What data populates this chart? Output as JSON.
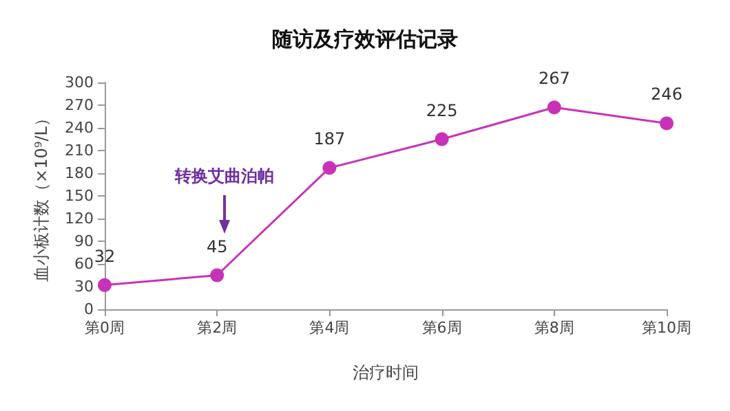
{
  "chart_data": {
    "type": "line",
    "title": "随访及疗效评估记录",
    "xlabel": "治疗时间",
    "ylabel": "血小板计数（×10⁹/L）",
    "categories": [
      "第0周",
      "第2周",
      "第4周",
      "第6周",
      "第8周",
      "第10周"
    ],
    "series": [
      {
        "color": "#c832b8",
        "values": [
          32,
          45,
          187,
          225,
          267,
          246
        ]
      }
    ],
    "ylim": [
      0,
      300
    ],
    "yticks": [
      0,
      30,
      60,
      90,
      120,
      150,
      180,
      210,
      240,
      270,
      300
    ],
    "annotations": [
      "转换艾曲泊帕"
    ],
    "data_labels": true,
    "grid": false,
    "marker": "circle",
    "line_style": "solid"
  }
}
